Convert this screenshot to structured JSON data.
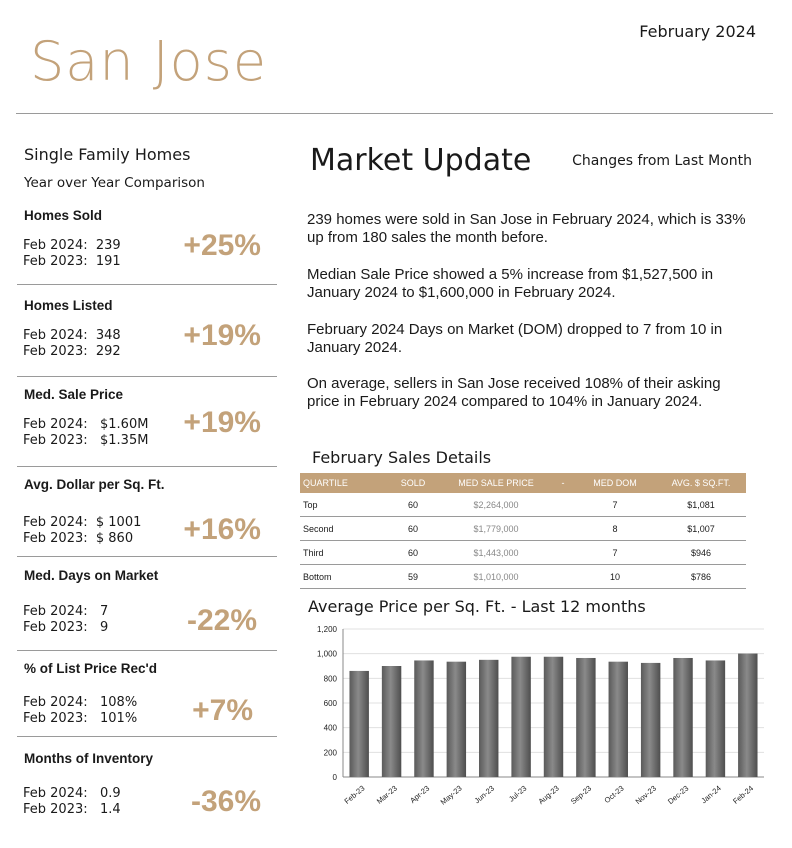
{
  "header": {
    "date": "February 2024",
    "city": "San Jose"
  },
  "left": {
    "heading": "Single Family Homes",
    "subheading": "Year over Year Comparison",
    "stats": [
      {
        "title": "Homes Sold",
        "line1": "Feb 2024:  239",
        "line2": "Feb 2023:  191",
        "change": "+25%"
      },
      {
        "title": "Homes Listed",
        "line1": "Feb 2024:  348",
        "line2": "Feb 2023:  292",
        "change": "+19%"
      },
      {
        "title": "Med. Sale Price",
        "line1": "Feb 2024:   $1.60M",
        "line2": "Feb 2023:   $1.35M",
        "change": "+19%"
      },
      {
        "title": "Avg. Dollar per Sq. Ft.",
        "line1": "Feb 2024:  $ 1001",
        "line2": "Feb 2023:  $ 860",
        "change": "+16%"
      },
      {
        "title": "Med. Days on Market",
        "line1": "Feb 2024:   7",
        "line2": "Feb 2023:   9",
        "change": "-22%"
      },
      {
        "title": "% of List Price Rec'd",
        "line1": "Feb 2024:   108%",
        "line2": "Feb 2023:   101%",
        "change": "+7%"
      },
      {
        "title": "Months of Inventory",
        "line1": "Feb 2024:   0.9",
        "line2": "Feb 2023:   1.4",
        "change": "-36%"
      }
    ]
  },
  "market_update": {
    "title": "Market Update",
    "subtitle": "Changes from Last Month",
    "paragraphs": [
      "239 homes were sold in San Jose in February 2024, which is 33% up from 180 sales the month before.",
      "Median Sale Price showed a 5% increase from $1,527,500 in January 2024 to $1,600,000 in February 2024.",
      "February 2024 Days on Market (DOM) dropped to 7 from 10 in January 2024.",
      "On average, sellers in San Jose received 108% of their asking price in February 2024 compared to 104% in January 2024."
    ]
  },
  "sales_details": {
    "title": "February Sales Details",
    "headers": [
      "QUARTILE",
      "SOLD",
      "MED SALE PRICE",
      "-",
      "MED DOM",
      "AVG. $ SQ.FT."
    ],
    "rows": [
      [
        "Top",
        "60",
        "$2,264,000",
        "",
        "7",
        "$1,081"
      ],
      [
        "Second",
        "60",
        "$1,779,000",
        "",
        "8",
        "$1,007"
      ],
      [
        "Third",
        "60",
        "$1,443,000",
        "",
        "7",
        "$946"
      ],
      [
        "Bottom",
        "59",
        "$1,010,000",
        "",
        "10",
        "$786"
      ]
    ]
  },
  "chart_data": {
    "type": "bar",
    "title": "Average Price per Sq. Ft. - Last 12 months",
    "categories": [
      "Feb-23",
      "Mar-23",
      "Apr-23",
      "May-23",
      "Jun-23",
      "Jul-23",
      "Aug-23",
      "Sep-23",
      "Oct-23",
      "Nov-23",
      "Dec-23",
      "Jan-24",
      "Feb-24"
    ],
    "values": [
      860,
      900,
      945,
      935,
      950,
      975,
      975,
      965,
      935,
      925,
      965,
      945,
      1001
    ],
    "ylim": [
      0,
      1200
    ],
    "yticks": [
      0,
      200,
      400,
      600,
      800,
      1000,
      1200
    ],
    "ytick_labels": [
      "0",
      "200",
      "400",
      "600",
      "800",
      "1,000",
      "1,200"
    ],
    "grid": true,
    "colors": {
      "bar": "#6e6e6e",
      "grid": "#e0e0e0"
    }
  },
  "colors": {
    "accent": "#c3a27a"
  }
}
